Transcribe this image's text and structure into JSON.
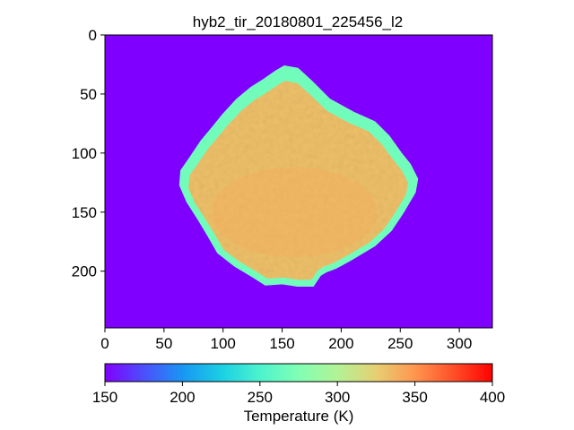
{
  "chart_data": {
    "type": "heatmap",
    "title": "hyb2_tir_20180801_225456_l2",
    "xlabel": "",
    "ylabel": "",
    "image_width": 328,
    "image_height": 248,
    "xlim": [
      0,
      328
    ],
    "ylim": [
      248,
      0
    ],
    "x_ticks": [
      0,
      50,
      100,
      150,
      200,
      250,
      300
    ],
    "y_ticks": [
      0,
      50,
      100,
      150,
      200
    ],
    "x_tick_labels": [
      "0",
      "50",
      "100",
      "150",
      "200",
      "250",
      "300"
    ],
    "y_tick_labels": [
      "0",
      "50",
      "100",
      "150",
      "200"
    ],
    "colormap": "rainbow",
    "background_value": 150,
    "colorbar": {
      "label": "Temperature (K)",
      "orientation": "horizontal",
      "range": [
        150,
        400
      ],
      "ticks": [
        150,
        200,
        250,
        300,
        350,
        400
      ],
      "tick_labels": [
        "150",
        "200",
        "250",
        "300",
        "350",
        "400"
      ]
    },
    "asteroid": {
      "outline": [
        [
          152,
          27
        ],
        [
          163,
          29
        ],
        [
          175,
          40
        ],
        [
          190,
          55
        ],
        [
          210,
          66
        ],
        [
          228,
          74
        ],
        [
          240,
          86
        ],
        [
          250,
          100
        ],
        [
          258,
          110
        ],
        [
          264,
          122
        ],
        [
          262,
          133
        ],
        [
          252,
          150
        ],
        [
          242,
          165
        ],
        [
          228,
          178
        ],
        [
          208,
          190
        ],
        [
          195,
          197
        ],
        [
          187,
          200
        ],
        [
          182,
          203
        ],
        [
          176,
          212
        ],
        [
          163,
          212
        ],
        [
          150,
          210
        ],
        [
          136,
          211
        ],
        [
          125,
          204
        ],
        [
          110,
          195
        ],
        [
          96,
          184
        ],
        [
          88,
          170
        ],
        [
          79,
          155
        ],
        [
          70,
          141
        ],
        [
          64,
          127
        ],
        [
          65,
          115
        ],
        [
          72,
          105
        ],
        [
          82,
          90
        ],
        [
          92,
          78
        ],
        [
          100,
          68
        ],
        [
          112,
          55
        ],
        [
          124,
          45
        ],
        [
          135,
          38
        ],
        [
          145,
          31
        ]
      ],
      "limb_value": 268,
      "interior_value": 332,
      "warm_core_value": 340,
      "warm_core_center": [
        160,
        150
      ]
    }
  }
}
